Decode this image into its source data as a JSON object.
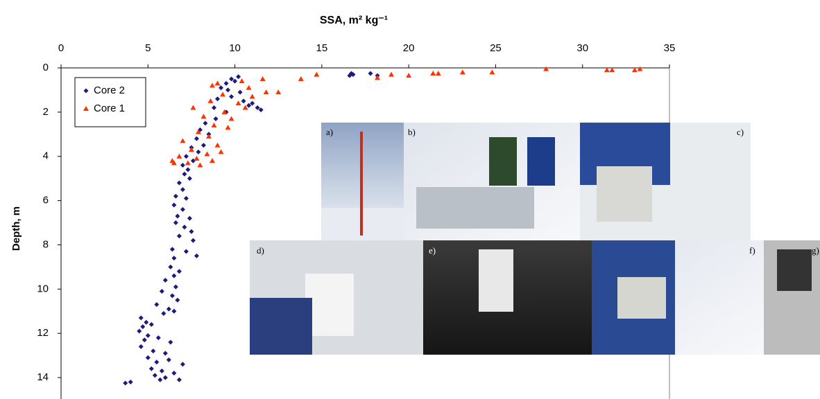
{
  "chart_data": {
    "type": "scatter",
    "title": "SSA, m² kg⁻¹",
    "y_label": "Depth, m",
    "xlim": [
      0,
      35
    ],
    "xticks": [
      0,
      5,
      10,
      15,
      20,
      25,
      30,
      35
    ],
    "ylim": [
      0,
      15
    ],
    "yticks": [
      0,
      2,
      4,
      6,
      8,
      10,
      12,
      14
    ],
    "y_inverted": true,
    "x_axis_position": "top",
    "legend": "upper-left",
    "series": [
      {
        "name": "Core 2",
        "color": "#1a1a80",
        "marker": "diamond",
        "x": [
          16.7,
          16.8,
          16.6,
          17.8,
          18.2,
          10.2,
          9.8,
          10.0,
          9.5,
          9.2,
          9.6,
          10.3,
          9.8,
          10.5,
          11.0,
          11.3,
          11.5,
          10.8,
          9.0,
          8.8,
          9.5,
          8.9,
          8.3,
          8.0,
          8.5,
          7.8,
          8.2,
          7.5,
          7.9,
          7.2,
          7.6,
          7.0,
          7.3,
          7.1,
          7.4,
          6.8,
          7.0,
          6.6,
          7.2,
          6.5,
          7.0,
          6.7,
          7.4,
          6.6,
          7.1,
          7.5,
          6.8,
          7.6,
          6.4,
          7.2,
          7.8,
          6.5,
          6.3,
          6.8,
          6.5,
          6.0,
          6.6,
          5.8,
          6.4,
          6.7,
          5.5,
          6.2,
          5.9,
          6.5,
          4.6,
          4.9,
          4.7,
          5.2,
          4.5,
          5.0,
          4.8,
          5.6,
          6.3,
          4.6,
          5.3,
          6.0,
          5.0,
          5.5,
          6.2,
          7.0,
          5.2,
          5.8,
          6.5,
          5.4,
          6.0,
          6.8,
          4.0,
          3.7,
          5.7
        ],
        "values": [
          0.25,
          0.3,
          0.35,
          0.25,
          0.35,
          0.4,
          0.5,
          0.6,
          0.7,
          0.9,
          1.0,
          1.1,
          1.3,
          1.5,
          1.6,
          1.8,
          1.9,
          1.7,
          1.4,
          1.8,
          2.0,
          2.3,
          2.5,
          2.8,
          3.0,
          3.2,
          3.5,
          3.6,
          3.8,
          4.0,
          4.2,
          4.4,
          4.6,
          4.8,
          5.0,
          5.2,
          5.5,
          5.8,
          5.9,
          6.2,
          6.4,
          6.7,
          6.8,
          7.0,
          7.2,
          7.4,
          7.6,
          7.8,
          8.2,
          8.3,
          8.5,
          8.6,
          9.0,
          9.2,
          9.4,
          9.6,
          9.9,
          10.1,
          10.3,
          10.5,
          10.7,
          10.9,
          11.1,
          11.0,
          11.3,
          11.5,
          11.7,
          11.6,
          11.9,
          12.1,
          12.3,
          12.2,
          12.4,
          12.6,
          12.8,
          12.9,
          13.1,
          13.3,
          13.2,
          13.4,
          13.6,
          13.7,
          13.8,
          13.9,
          14.0,
          14.1,
          14.2,
          14.25,
          14.1
        ]
      },
      {
        "name": "Core 1",
        "color": "#ff3300",
        "marker": "triangle",
        "x": [
          14.7,
          19.0,
          20.0,
          21.4,
          21.7,
          23.1,
          24.8,
          27.9,
          31.4,
          31.7,
          33.0,
          33.3,
          18.2,
          13.8,
          11.6,
          10.4,
          9.0,
          8.7,
          10.8,
          11.8,
          12.5,
          11.0,
          9.3,
          8.6,
          10.2,
          10.6,
          9.4,
          7.6,
          8.2,
          9.8,
          8.8,
          9.6,
          7.9,
          8.5,
          7.0,
          9.0,
          7.5,
          8.4,
          6.8,
          7.8,
          8.7,
          6.5,
          7.3,
          8.0,
          6.4,
          9.2
        ],
        "values": [
          0.3,
          0.3,
          0.35,
          0.25,
          0.25,
          0.2,
          0.2,
          0.05,
          0.1,
          0.1,
          0.1,
          0.05,
          0.45,
          0.5,
          0.5,
          0.6,
          0.7,
          0.8,
          0.9,
          1.1,
          1.1,
          1.3,
          1.2,
          1.5,
          1.6,
          1.8,
          2.0,
          1.8,
          2.2,
          2.3,
          2.6,
          2.7,
          2.9,
          3.1,
          3.3,
          3.5,
          3.7,
          3.9,
          4.0,
          4.1,
          4.2,
          4.3,
          4.3,
          4.4,
          4.2,
          3.8
        ]
      }
    ]
  },
  "photos": [
    "a)",
    "b)",
    "c)",
    "d)",
    "e)",
    "f)",
    "g)"
  ]
}
